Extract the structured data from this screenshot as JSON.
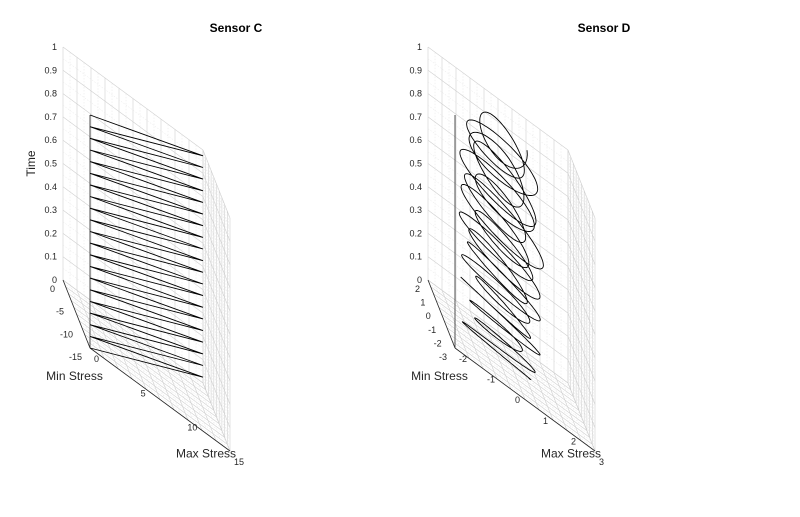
{
  "chart_data": [
    {
      "type": "line",
      "title": "Sensor C",
      "xlabel": "Max Stress",
      "ylabel": "Min Stress",
      "zlabel": "Time",
      "xlim": [
        0,
        15
      ],
      "ylim": [
        -15,
        0
      ],
      "zlim": [
        0,
        1
      ],
      "xticks": [
        "0",
        "5",
        "10",
        "15"
      ],
      "yticks": [
        "0",
        "-5",
        "-10",
        "-15"
      ],
      "zticks": [
        "0",
        "0.1",
        "0.2",
        "0.3",
        "0.4",
        "0.5",
        "0.6",
        "0.7",
        "0.8",
        "0.9",
        "1"
      ],
      "grid": true,
      "series": [
        {
          "shape": "sawtooth",
          "cycles": 20,
          "time_range": [
            0,
            1
          ],
          "max_stress_range": [
            0,
            15
          ],
          "min_stress_range": [
            -15,
            0
          ],
          "points": [
            [
              0,
              0,
              0
            ],
            [
              15,
              -15,
              0.025
            ],
            [
              0,
              0,
              0.05
            ],
            [
              15,
              -15,
              0.075
            ],
            [
              0,
              0,
              0.1
            ],
            [
              15,
              -15,
              0.125
            ],
            [
              0,
              0,
              0.15
            ],
            [
              15,
              -15,
              0.175
            ],
            [
              0,
              0,
              0.2
            ],
            [
              15,
              -15,
              0.225
            ],
            [
              0,
              0,
              0.25
            ],
            [
              15,
              -15,
              0.275
            ],
            [
              0,
              0,
              0.3
            ],
            [
              15,
              -15,
              0.325
            ],
            [
              0,
              0,
              0.35
            ],
            [
              15,
              -15,
              0.375
            ],
            [
              0,
              0,
              0.4
            ],
            [
              15,
              -15,
              0.425
            ],
            [
              0,
              0,
              0.45
            ],
            [
              15,
              -15,
              0.475
            ],
            [
              0,
              0,
              0.5
            ],
            [
              15,
              -15,
              0.525
            ],
            [
              0,
              0,
              0.55
            ],
            [
              15,
              -15,
              0.575
            ],
            [
              0,
              0,
              0.6
            ],
            [
              15,
              -15,
              0.625
            ],
            [
              0,
              0,
              0.65
            ],
            [
              15,
              -15,
              0.675
            ],
            [
              0,
              0,
              0.7
            ],
            [
              15,
              -15,
              0.725
            ],
            [
              0,
              0,
              0.75
            ],
            [
              15,
              -15,
              0.775
            ],
            [
              0,
              0,
              0.8
            ],
            [
              15,
              -15,
              0.825
            ],
            [
              0,
              0,
              0.85
            ],
            [
              15,
              -15,
              0.875
            ],
            [
              0,
              0,
              0.9
            ],
            [
              15,
              -15,
              0.925
            ],
            [
              0,
              0,
              0.95
            ],
            [
              15,
              -15,
              0.975
            ],
            [
              0,
              0,
              1
            ]
          ]
        }
      ]
    },
    {
      "type": "line",
      "title": "Sensor D",
      "xlabel": "Max Stress",
      "ylabel": "Min Stress",
      "zlabel": "Time",
      "xlim": [
        -2,
        3
      ],
      "ylim": [
        -3,
        2
      ],
      "zlim": [
        0,
        1
      ],
      "xticks": [
        "-2",
        "-1",
        "0",
        "1",
        "2",
        "3"
      ],
      "yticks": [
        "2",
        "1",
        "0",
        "-1",
        "-2",
        "-3"
      ],
      "zticks": [
        "0",
        "0.1",
        "0.2",
        "0.3",
        "0.4",
        "0.5",
        "0.6",
        "0.7",
        "0.8",
        "0.9",
        "1"
      ],
      "grid": true,
      "series": [
        {
          "shape": "looping-spiral",
          "cycles": 18,
          "time_range": [
            0,
            1
          ],
          "max_stress_amplitude": 1.2,
          "min_stress_amplitude": 1.2,
          "center": [
            0,
            0
          ]
        }
      ]
    }
  ]
}
